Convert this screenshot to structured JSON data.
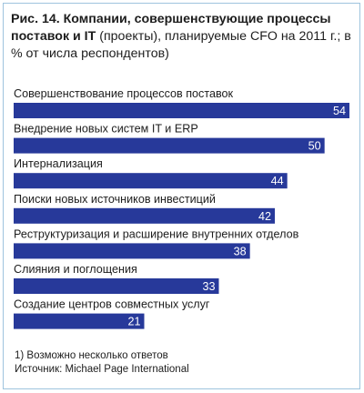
{
  "title": {
    "figure_label": "Рис. 14.",
    "bold_text": "Компании, совершенствующие процессы поставок  и IT",
    "regular_text": "(проекты), планируемые CFO на 2011 г.; в % от числа респондентов)"
  },
  "chart_data": {
    "type": "bar",
    "orientation": "horizontal",
    "categories": [
      "Совершенствование процессов поставок",
      "Внедрение новых систем IT и ERP",
      "Интернализация",
      "Поиски новых источников инвестиций",
      "Реструктуризация и расширение внутренних отделов",
      "Слияния и поглощения",
      "Создание центров совместных услуг"
    ],
    "values": [
      54,
      50,
      44,
      42,
      38,
      33,
      21
    ],
    "value_labels": [
      "54",
      "50",
      "44",
      "42",
      "38",
      "33",
      "21"
    ],
    "xlim": [
      0,
      54
    ],
    "bar_color": "#27399a",
    "value_label_color": "#ffffff",
    "grid": false,
    "legend": "none"
  },
  "footnotes": {
    "note": "1) Возможно несколько ответов",
    "source": "Источник: Michael Page International"
  },
  "colors": {
    "frame_border": "#9ec4de",
    "text": "#1d1d1d"
  }
}
